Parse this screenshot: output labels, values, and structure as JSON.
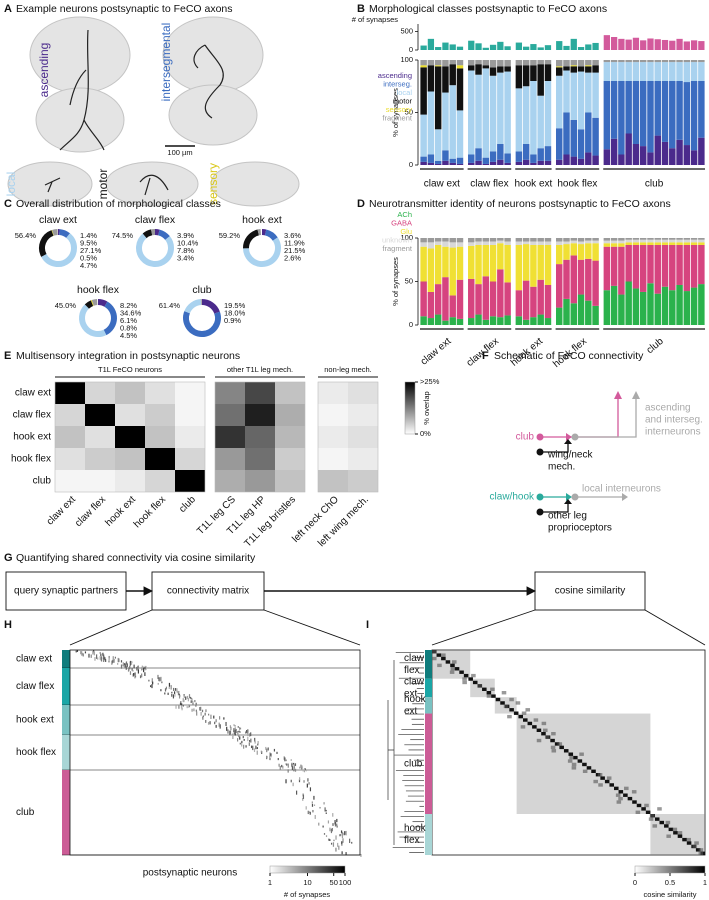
{
  "panel_a": {
    "letter": "A",
    "title": "Example neurons postsynaptic to FeCO axons",
    "labels": [
      "ascending",
      "intersegmental",
      "local",
      "motor",
      "sensory"
    ],
    "scale_bar": "100 µm"
  },
  "chart_data": [
    {
      "type": "stacked-bar",
      "panel": "B",
      "title": "Morphological classes postsynaptic to FeCO axons",
      "ylabel": "% of synapses",
      "ylim": [
        0,
        100
      ],
      "yticks": [
        0,
        50,
        100
      ],
      "top_label": "# of synapses",
      "top_ylim": [
        0,
        700
      ],
      "top_yticks": [
        0,
        500
      ],
      "series": [
        {
          "name": "ascending",
          "color": "#4b2a8c"
        },
        {
          "name": "interseg.",
          "color": "#3b6cc0"
        },
        {
          "name": "local",
          "color": "#a9d2ef"
        },
        {
          "name": "motor",
          "color": "#111111"
        },
        {
          "name": "sensory",
          "color": "#eadc2a"
        },
        {
          "name": "fragment",
          "color": "#9a9a9a"
        }
      ],
      "groups": [
        {
          "name": "claw ext",
          "color": "#2aaa9c",
          "values": [
            [
              3,
              2,
              1,
              4,
              2,
              1
            ],
            [
              5,
              8,
              3,
              10,
              4,
              6
            ],
            [
              40,
              60,
              30,
              55,
              70,
              45
            ],
            [
              45,
              25,
              60,
              25,
              20,
              40
            ],
            [
              2,
              0,
              1,
              0,
              0,
              3
            ],
            [
              5,
              5,
              5,
              6,
              4,
              5
            ]
          ],
          "synapses": [
            120,
            300,
            80,
            200,
            150,
            90
          ]
        },
        {
          "name": "claw flex",
          "color": "#2aaa9c",
          "values": [
            [
              2,
              4,
              1,
              3,
              5,
              2
            ],
            [
              8,
              12,
              6,
              10,
              15,
              9
            ],
            [
              80,
              70,
              85,
              72,
              68,
              78
            ],
            [
              5,
              10,
              3,
              8,
              6,
              5
            ],
            [
              0,
              0,
              0,
              0,
              0,
              0
            ],
            [
              5,
              4,
              5,
              7,
              6,
              6
            ]
          ],
          "synapses": [
            250,
            180,
            60,
            140,
            220,
            100
          ]
        },
        {
          "name": "hook ext",
          "color": "#2aaa9c",
          "values": [
            [
              3,
              5,
              2,
              4,
              4
            ],
            [
              10,
              15,
              8,
              12,
              14
            ],
            [
              60,
              55,
              70,
              50,
              62
            ],
            [
              22,
              20,
              15,
              30,
              16
            ],
            [
              0,
              0,
              0,
              0,
              0
            ],
            [
              5,
              5,
              5,
              4,
              4
            ]
          ],
          "synapses": [
            200,
            90,
            160,
            70,
            130
          ]
        },
        {
          "name": "hook flex",
          "color": "#2aaa9c",
          "values": [
            [
              5,
              10,
              8,
              6,
              12,
              9
            ],
            [
              30,
              40,
              35,
              28,
              38,
              36
            ],
            [
              50,
              40,
              45,
              55,
              38,
              43
            ],
            [
              8,
              4,
              6,
              5,
              6,
              7
            ],
            [
              1,
              0,
              1,
              0,
              1,
              0
            ],
            [
              6,
              6,
              5,
              6,
              5,
              5
            ]
          ],
          "synapses": [
            240,
            110,
            300,
            80,
            150,
            190
          ]
        },
        {
          "name": "club",
          "color": "#d35a9c",
          "values": [
            [
              15,
              25,
              10,
              30,
              20,
              18,
              12,
              28,
              22,
              16,
              24,
              19,
              14,
              26
            ],
            [
              65,
              55,
              70,
              50,
              60,
              62,
              68,
              52,
              58,
              64,
              56,
              60,
              66,
              54
            ],
            [
              18,
              18,
              18,
              18,
              18,
              18,
              18,
              18,
              18,
              18,
              18,
              19,
              18,
              18
            ],
            [
              0,
              0,
              0,
              0,
              0,
              0,
              0,
              0,
              0,
              0,
              0,
              0,
              0,
              0
            ],
            [
              0,
              0,
              0,
              0,
              0,
              0,
              0,
              0,
              0,
              0,
              0,
              0,
              0,
              0
            ],
            [
              2,
              2,
              2,
              2,
              2,
              2,
              2,
              2,
              2,
              2,
              2,
              2,
              2,
              2
            ]
          ],
          "synapses": [
            400,
            350,
            300,
            280,
            330,
            260,
            310,
            290,
            270,
            250,
            300,
            230,
            260,
            240
          ]
        }
      ]
    },
    {
      "type": "donut",
      "panel": "C",
      "title": "Overall distribution of morphological classes",
      "colors": [
        "#4b2a8c",
        "#3b6cc0",
        "#a9d2ef",
        "#111111",
        "#eadc2a",
        "#9a9a9a"
      ],
      "donuts": [
        {
          "name": "claw ext",
          "values": [
            1.4,
            9.5,
            56.4,
            27.1,
            0.5,
            4.7
          ],
          "value_labels": [
            "1.4%",
            "9.5%",
            "56.4%",
            "27.1%",
            "0.5%",
            "4.7%"
          ]
        },
        {
          "name": "claw flex",
          "values": [
            3.9,
            10.4,
            74.5,
            7.8,
            null,
            3.4
          ],
          "value_labels": [
            "3.9%",
            "10.4%",
            "74.5%",
            "7.8%",
            null,
            "3.4%"
          ]
        },
        {
          "name": "hook ext",
          "values": [
            3.6,
            11.9,
            59.2,
            21.5,
            null,
            2.6
          ],
          "value_labels": [
            "3.6%",
            "11.9%",
            "59.2%",
            "21.5%",
            null,
            "2.6%"
          ]
        },
        {
          "name": "hook flex",
          "values": [
            8.2,
            34.6,
            45.0,
            6.1,
            0.8,
            4.5
          ],
          "value_labels": [
            "8.2%",
            "34.6%",
            "45.0%",
            "6.1%",
            "0.8%",
            "4.5%"
          ]
        },
        {
          "name": "club",
          "values": [
            19.5,
            61.4,
            18.0,
            null,
            null,
            0.9
          ],
          "value_labels": [
            "19.5%",
            "61.4%",
            "18.0%",
            null,
            null,
            "0.9%"
          ]
        }
      ]
    },
    {
      "type": "stacked-bar",
      "panel": "D",
      "title": "Neurotransmitter identity of neurons postsynaptic to FeCO axons",
      "ylabel": "% of synapses",
      "ylim": [
        0,
        100
      ],
      "yticks": [
        0,
        50,
        100
      ],
      "series": [
        {
          "name": "ACh",
          "color": "#2bb24c"
        },
        {
          "name": "GABA",
          "color": "#d6447f"
        },
        {
          "name": "Glu",
          "color": "#f0e034"
        },
        {
          "name": "unknown",
          "color": "#d8d8d8"
        },
        {
          "name": "fragment",
          "color": "#9a9a9a"
        }
      ],
      "groups": [
        {
          "name": "claw ext",
          "values": [
            [
              10,
              8,
              12,
              5,
              9,
              7
            ],
            [
              40,
              30,
              35,
              50,
              25,
              45
            ],
            [
              40,
              50,
              45,
              35,
              55,
              38
            ],
            [
              5,
              7,
              4,
              6,
              6,
              5
            ],
            [
              5,
              5,
              4,
              4,
              5,
              5
            ]
          ]
        },
        {
          "name": "claw flex",
          "values": [
            [
              8,
              12,
              6,
              10,
              9,
              11
            ],
            [
              45,
              35,
              50,
              40,
              55,
              38
            ],
            [
              38,
              45,
              36,
              42,
              30,
              43
            ],
            [
              4,
              4,
              4,
              4,
              3,
              4
            ],
            [
              5,
              4,
              4,
              4,
              3,
              4
            ]
          ]
        },
        {
          "name": "hook ext",
          "values": [
            [
              10,
              6,
              9,
              12,
              8
            ],
            [
              30,
              45,
              35,
              40,
              38
            ],
            [
              52,
              42,
              48,
              40,
              46
            ],
            [
              4,
              3,
              4,
              4,
              4
            ],
            [
              4,
              4,
              4,
              4,
              4
            ]
          ]
        },
        {
          "name": "hook flex",
          "values": [
            [
              20,
              30,
              25,
              35,
              28,
              22
            ],
            [
              50,
              45,
              55,
              40,
              48,
              52
            ],
            [
              22,
              18,
              14,
              18,
              18,
              20
            ],
            [
              4,
              3,
              3,
              3,
              3,
              3
            ],
            [
              4,
              4,
              3,
              4,
              3,
              3
            ]
          ]
        },
        {
          "name": "club",
          "values": [
            [
              40,
              45,
              35,
              50,
              42,
              38,
              48,
              36,
              44,
              40,
              46,
              39,
              43,
              47
            ],
            [
              50,
              45,
              55,
              42,
              50,
              54,
              44,
              56,
              48,
              52,
              46,
              53,
              49,
              45
            ],
            [
              4,
              4,
              4,
              3,
              3,
              3,
              3,
              3,
              3,
              3,
              3,
              3,
              3,
              3
            ],
            [
              3,
              3,
              3,
              3,
              3,
              3,
              3,
              3,
              3,
              3,
              3,
              3,
              3,
              3
            ],
            [
              3,
              3,
              3,
              2,
              2,
              2,
              2,
              2,
              2,
              2,
              2,
              2,
              2,
              2
            ]
          ]
        }
      ]
    },
    {
      "type": "heatmap",
      "panel": "E",
      "title": "Multisensory integration in postsynaptic neurons",
      "rows": [
        "claw ext",
        "claw flex",
        "hook ext",
        "hook flex",
        "club"
      ],
      "column_groups": [
        {
          "label": "T1L FeCO neurons",
          "columns": [
            "claw ext",
            "claw flex",
            "hook ext",
            "hook flex",
            "club"
          ]
        },
        {
          "label": "other T1L leg mech.",
          "columns": [
            "T1L leg CS",
            "T1L leg HP",
            "T1L leg bristles"
          ]
        },
        {
          "label": "non-leg mech.",
          "columns": [
            "left neck ChO",
            "left wing mech."
          ]
        }
      ],
      "values": [
        [
          25,
          4,
          6,
          3,
          1,
          12,
          18,
          6,
          2,
          3
        ],
        [
          4,
          25,
          3,
          5,
          1,
          14,
          22,
          8,
          1,
          2
        ],
        [
          6,
          3,
          25,
          6,
          2,
          20,
          15,
          7,
          2,
          3
        ],
        [
          3,
          5,
          6,
          25,
          4,
          10,
          14,
          5,
          1,
          2
        ],
        [
          1,
          1,
          2,
          4,
          25,
          8,
          10,
          6,
          6,
          5
        ]
      ],
      "clim": [
        0,
        25
      ],
      "colorbar_ticks": [
        {
          "value": 25,
          "label": ">25%"
        },
        {
          "value": 0,
          "label": "0%"
        }
      ],
      "colorbar_label": "% overlap"
    }
  ],
  "panel_f": {
    "letter": "F",
    "title": "Schematic of FeCO connectivity",
    "club": "club",
    "wing_neck": [
      "wing/neck",
      "mech."
    ],
    "ascending": [
      "ascending",
      "and interseg.",
      "interneurons"
    ],
    "claw_hook": "claw/hook",
    "local": "local interneurons",
    "other_leg": [
      "other leg",
      "proprioceptors"
    ]
  },
  "panel_g": {
    "letter": "G",
    "title": "Quantifying shared connectivity via cosine similarity",
    "boxes": [
      "query synaptic partners",
      "connectivity matrix",
      "cosine similarity"
    ]
  },
  "panel_h": {
    "letter": "H",
    "row_labels": [
      "claw ext",
      "claw flex",
      "hook ext",
      "hook flex",
      "club"
    ],
    "xlabel": "postsynaptic neurons",
    "colorbar": {
      "lim": [
        1,
        100
      ],
      "log": true,
      "ticks": [
        1,
        10,
        50,
        100
      ],
      "label": "# of synapses"
    }
  },
  "panel_i": {
    "letter": "I",
    "row_labels": [
      [
        "claw",
        "flex"
      ],
      [
        "claw",
        "ext"
      ],
      [
        "hook",
        "ext"
      ],
      [
        "club"
      ],
      [
        "hook",
        "flex"
      ]
    ],
    "colorbar": {
      "lim": [
        0,
        1
      ],
      "ticks": [
        0,
        0.5,
        1
      ],
      "label": "cosine similarity"
    }
  }
}
